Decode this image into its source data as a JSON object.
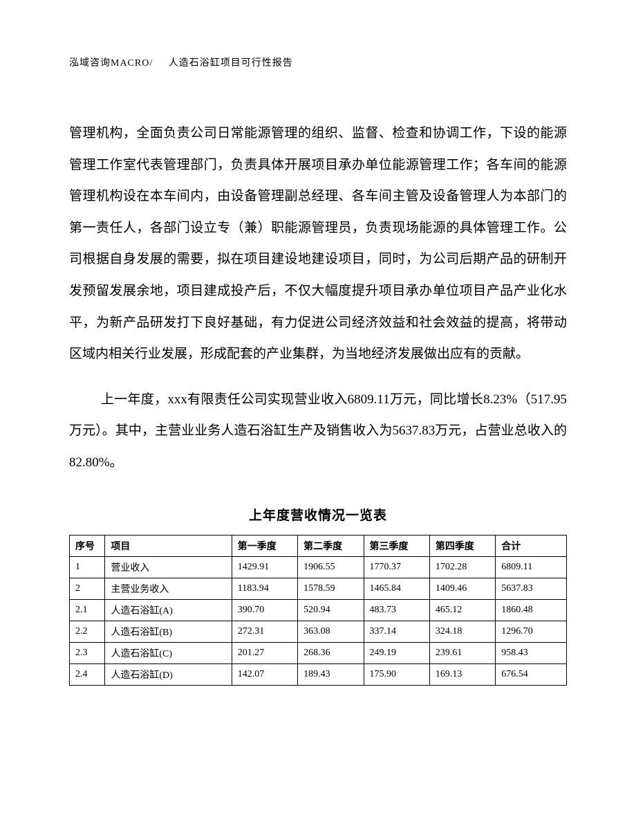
{
  "header": {
    "company": "泓域咨询MACRO/",
    "title": "人造石浴缸项目可行性报告"
  },
  "paragraphs": {
    "p1": "管理机构，全面负责公司日常能源管理的组织、监督、检查和协调工作，下设的能源管理工作室代表管理部门，负责具体开展项目承办单位能源管理工作；各车间的能源管理机构设在本车间内，由设备管理副总经理、各车间主管及设备管理人为本部门的第一责任人，各部门设立专（兼）职能源管理员，负责现场能源的具体管理工作。公司根据自身发展的需要，拟在项目建设地建设项目，同时，为公司后期产品的研制开发预留发展余地，项目建成投产后，不仅大幅度提升项目承办单位项目产品产业化水平，为新产品研发打下良好基础，有力促进公司经济效益和社会效益的提高，将带动区域内相关行业发展，形成配套的产业集群，为当地经济发展做出应有的贡献。",
    "p2": "上一年度，xxx有限责任公司实现营业收入6809.11万元，同比增长8.23%（517.95万元）。其中，主营业业务人造石浴缸生产及销售收入为5637.83万元，占营业总收入的82.80%。"
  },
  "table": {
    "title": "上年度营收情况一览表",
    "columns": [
      "序号",
      "项目",
      "第一季度",
      "第二季度",
      "第三季度",
      "第四季度",
      "合计"
    ],
    "rows": [
      [
        "1",
        "营业收入",
        "1429.91",
        "1906.55",
        "1770.37",
        "1702.28",
        "6809.11"
      ],
      [
        "2",
        "主营业务收入",
        "1183.94",
        "1578.59",
        "1465.84",
        "1409.46",
        "5637.83"
      ],
      [
        "2.1",
        "人造石浴缸(A)",
        "390.70",
        "520.94",
        "483.73",
        "465.12",
        "1860.48"
      ],
      [
        "2.2",
        "人造石浴缸(B)",
        "272.31",
        "363.08",
        "337.14",
        "324.18",
        "1296.70"
      ],
      [
        "2.3",
        "人造石浴缸(C)",
        "201.27",
        "268.36",
        "249.19",
        "239.61",
        "958.43"
      ],
      [
        "2.4",
        "人造石浴缸(D)",
        "142.07",
        "189.43",
        "175.90",
        "169.13",
        "676.54"
      ]
    ]
  }
}
